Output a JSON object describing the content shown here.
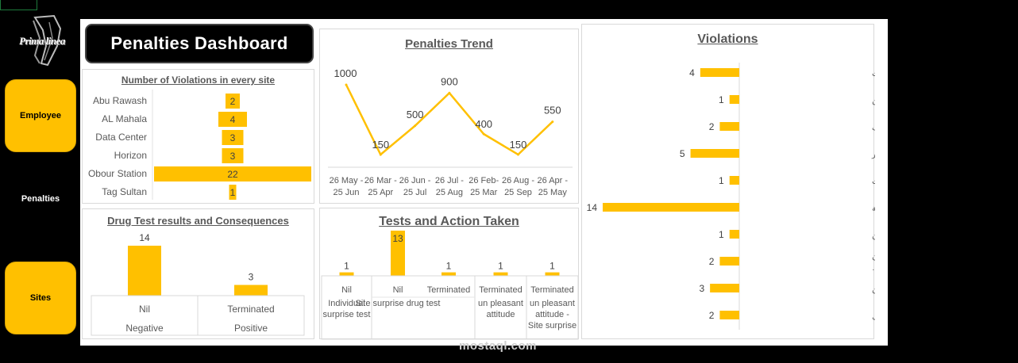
{
  "sidebar": {
    "logo_text": "Prima linea",
    "items": [
      {
        "label": "Employee",
        "style": "button"
      },
      {
        "label": "Penalties",
        "style": "plain"
      },
      {
        "label": "Sites",
        "style": "button"
      }
    ]
  },
  "dashboard": {
    "title": "Penalties Dashboard"
  },
  "watermark": "mostaql.com",
  "colors": {
    "bar": "#ffc000",
    "line": "#ffc000",
    "text": "#595959",
    "background": "#000000",
    "panel": "#ffffff"
  },
  "chart_data": [
    {
      "id": "violations-by-site",
      "type": "bar",
      "orientation": "horizontal",
      "title": "Number of Violations in every site",
      "categories": [
        "Abu Rawash",
        "AL Mahala",
        "Data Center",
        "Horizon",
        "Obour Station",
        "Tag Sultan"
      ],
      "values": [
        2,
        4,
        3,
        3,
        22,
        1
      ],
      "data_labels": true
    },
    {
      "id": "penalties-trend",
      "type": "line",
      "title": "Penalties Trend",
      "categories": [
        [
          "26 May -",
          "25 Jun"
        ],
        [
          "26 Mar -",
          "25 Apr"
        ],
        [
          "26 Jun -",
          "25 Jul"
        ],
        [
          "26 Jul -",
          "25 Aug"
        ],
        [
          "26 Feb-",
          "25 Mar"
        ],
        [
          "26 Aug -",
          "25 Sep"
        ],
        [
          "26 Apr -",
          "25 May"
        ]
      ],
      "values": [
        1000,
        150,
        500,
        900,
        400,
        150,
        550
      ],
      "data_labels": true
    },
    {
      "id": "violations",
      "type": "bar",
      "orientation": "horizontal",
      "title": "Violations",
      "categories": [
        [
          "عدم القيام بعمل جولات"
        ],
        [
          "عدم ارتداء الزي الرسمي الخاص بالأمن"
        ],
        [
          "عدم اتباع تعليمات المشرف"
        ],
        [
          "ترك محل العمل والذهاب الى مكان اخر"
        ],
        [
          "تخريب الممتلكات"
        ],
        [
          "النوم اثناء اداء الخدمة"
        ],
        [
          "السماح بدخول أشخاص ممنوعين"
        ],
        [
          "السماح بدخول اشخاص (ممنوعين- بدون",
          "مهمات - سائقين بدون كارت القيادة او…"
        ],
        [
          "التدخين في مكان غير مخصص للتدخين"
        ],
        [
          "التحدث والانشغال بالتليفون اثناء العمل"
        ]
      ],
      "values": [
        4,
        1,
        2,
        5,
        1,
        14,
        1,
        2,
        3,
        2
      ],
      "data_labels": true
    },
    {
      "id": "drug-test",
      "type": "bar",
      "title": "Drug Test results and Consequences",
      "categories": [
        [
          "Nil",
          "Negative"
        ],
        [
          "Terminated",
          "Positive"
        ]
      ],
      "values": [
        14,
        3
      ],
      "data_labels": true
    },
    {
      "id": "tests-action",
      "type": "bar",
      "title": "Tests and Action Taken",
      "categories": [
        [
          "Nil",
          "Individual",
          "surprise test"
        ],
        [
          "Nil",
          "Site surprise drug test"
        ],
        [
          "Terminated",
          ""
        ],
        [
          "Terminated",
          "un pleasant",
          "attitude"
        ],
        [
          "Terminated",
          "un pleasant",
          "attitude -",
          "Site surprise"
        ]
      ],
      "values": [
        1,
        13,
        1,
        1,
        1
      ],
      "data_labels": true
    }
  ]
}
